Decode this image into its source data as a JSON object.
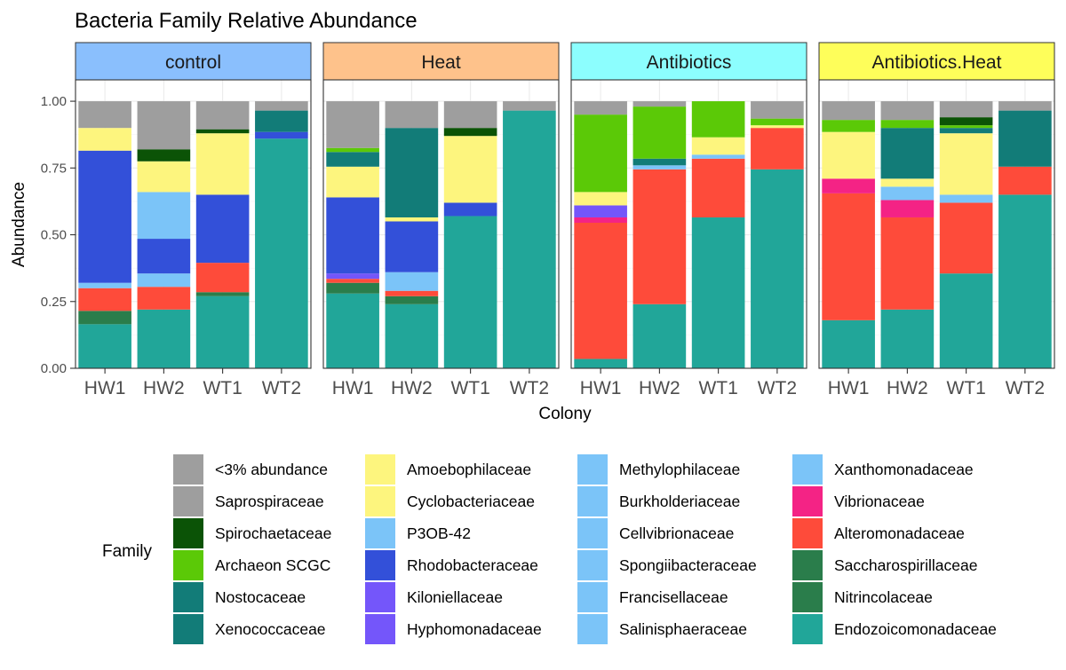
{
  "chart_data": {
    "type": "bar",
    "stacked": true,
    "title": "Bacteria Family Relative Abundance",
    "xlabel": "Colony",
    "ylabel": "Abundance",
    "ylim": [
      0,
      1.08
    ],
    "yticks": [
      "0.00",
      "0.25",
      "0.50",
      "0.75",
      "1.00"
    ],
    "ytick_values": [
      0,
      0.25,
      0.5,
      0.75,
      1.0
    ],
    "grid": true,
    "legend_position": "bottom",
    "legend_title": "Family",
    "categories": [
      "HW1",
      "HW2",
      "WT1",
      "WT2"
    ],
    "families": [
      {
        "name": "<3% abundance",
        "color": "#9E9E9E"
      },
      {
        "name": "Saprospiraceae",
        "color": "#9E9E9E"
      },
      {
        "name": "Spirochaetaceae",
        "color": "#0B5306"
      },
      {
        "name": "Archaeon SCGC",
        "color": "#5BC907"
      },
      {
        "name": "Nostocaceae",
        "color": "#127C78"
      },
      {
        "name": "Xenococcaceae",
        "color": "#127C78"
      },
      {
        "name": "Amoebophilaceae",
        "color": "#FDF57E"
      },
      {
        "name": "Cyclobacteriaceae",
        "color": "#FDF57E"
      },
      {
        "name": "P3OB-42",
        "color": "#7BC4F8"
      },
      {
        "name": "Rhodobacteraceae",
        "color": "#3350D9"
      },
      {
        "name": "Kiloniellaceae",
        "color": "#7456FA"
      },
      {
        "name": "Hyphomonadaceae",
        "color": "#7456FA"
      },
      {
        "name": "Methylophilaceae",
        "color": "#7BC4F8"
      },
      {
        "name": "Burkholderiaceae",
        "color": "#7BC4F8"
      },
      {
        "name": "Cellvibrionaceae",
        "color": "#7BC4F8"
      },
      {
        "name": "Spongiibacteraceae",
        "color": "#7BC4F8"
      },
      {
        "name": "Francisellaceae",
        "color": "#7BC4F8"
      },
      {
        "name": "Salinisphaeraceae",
        "color": "#7BC4F8"
      },
      {
        "name": "Xanthomonadaceae",
        "color": "#7BC4F8"
      },
      {
        "name": "Vibrionaceae",
        "color": "#F42385"
      },
      {
        "name": "Alteromonadaceae",
        "color": "#FE4B3A"
      },
      {
        "name": "Saccharospirillaceae",
        "color": "#2A7D4B"
      },
      {
        "name": "Nitrincolaceae",
        "color": "#2A7D4B"
      },
      {
        "name": "Endozoicomonadaceae",
        "color": "#21A699"
      }
    ],
    "panels": [
      {
        "label": "control",
        "strip_color": "#8ABFFD",
        "bars": [
          {
            "category": "HW1",
            "segments": [
              {
                "family": "Endozoicomonadaceae",
                "value": 0.165
              },
              {
                "family": "Saccharospirillaceae",
                "value": 0.05
              },
              {
                "family": "Alteromonadaceae",
                "value": 0.085
              },
              {
                "family": "Xanthomonadaceae",
                "value": 0.02
              },
              {
                "family": "Rhodobacteraceae",
                "value": 0.495
              },
              {
                "family": "Amoebophilaceae",
                "value": 0.085
              },
              {
                "family": "<3% abundance",
                "value": 0.1
              }
            ]
          },
          {
            "category": "HW2",
            "segments": [
              {
                "family": "Endozoicomonadaceae",
                "value": 0.22
              },
              {
                "family": "Alteromonadaceae",
                "value": 0.085
              },
              {
                "family": "P3OB-42",
                "value": 0.05
              },
              {
                "family": "Rhodobacteraceae",
                "value": 0.13
              },
              {
                "family": "P3OB-42",
                "value": 0.175
              },
              {
                "family": "Amoebophilaceae",
                "value": 0.115
              },
              {
                "family": "Spirochaetaceae",
                "value": 0.045
              },
              {
                "family": "<3% abundance",
                "value": 0.18
              }
            ]
          },
          {
            "category": "WT1",
            "segments": [
              {
                "family": "Endozoicomonadaceae",
                "value": 0.27
              },
              {
                "family": "Saccharospirillaceae",
                "value": 0.015
              },
              {
                "family": "Alteromonadaceae",
                "value": 0.11
              },
              {
                "family": "Rhodobacteraceae",
                "value": 0.255
              },
              {
                "family": "Amoebophilaceae",
                "value": 0.23
              },
              {
                "family": "Spirochaetaceae",
                "value": 0.015
              },
              {
                "family": "<3% abundance",
                "value": 0.105
              }
            ]
          },
          {
            "category": "WT2",
            "segments": [
              {
                "family": "Endozoicomonadaceae",
                "value": 0.86
              },
              {
                "family": "Rhodobacteraceae",
                "value": 0.025
              },
              {
                "family": "Nostocaceae",
                "value": 0.08
              },
              {
                "family": "<3% abundance",
                "value": 0.035
              }
            ]
          }
        ]
      },
      {
        "label": "Heat",
        "strip_color": "#FEC28B",
        "bars": [
          {
            "category": "HW1",
            "segments": [
              {
                "family": "Endozoicomonadaceae",
                "value": 0.28
              },
              {
                "family": "Saccharospirillaceae",
                "value": 0.04
              },
              {
                "family": "Alteromonadaceae",
                "value": 0.015
              },
              {
                "family": "Hyphomonadaceae",
                "value": 0.02
              },
              {
                "family": "Rhodobacteraceae",
                "value": 0.285
              },
              {
                "family": "Amoebophilaceae",
                "value": 0.115
              },
              {
                "family": "Nostocaceae",
                "value": 0.055
              },
              {
                "family": "Archaeon SCGC",
                "value": 0.015
              },
              {
                "family": "<3% abundance",
                "value": 0.175
              }
            ]
          },
          {
            "category": "HW2",
            "segments": [
              {
                "family": "Endozoicomonadaceae",
                "value": 0.24
              },
              {
                "family": "Saccharospirillaceae",
                "value": 0.03
              },
              {
                "family": "Alteromonadaceae",
                "value": 0.02
              },
              {
                "family": "P3OB-42",
                "value": 0.07
              },
              {
                "family": "Rhodobacteraceae",
                "value": 0.19
              },
              {
                "family": "Amoebophilaceae",
                "value": 0.015
              },
              {
                "family": "Nostocaceae",
                "value": 0.335
              },
              {
                "family": "<3% abundance",
                "value": 0.1
              }
            ]
          },
          {
            "category": "WT1",
            "segments": [
              {
                "family": "Endozoicomonadaceae",
                "value": 0.57
              },
              {
                "family": "Rhodobacteraceae",
                "value": 0.05
              },
              {
                "family": "Amoebophilaceae",
                "value": 0.25
              },
              {
                "family": "Spirochaetaceae",
                "value": 0.03
              },
              {
                "family": "<3% abundance",
                "value": 0.1
              }
            ]
          },
          {
            "category": "WT2",
            "segments": [
              {
                "family": "Endozoicomonadaceae",
                "value": 0.965
              },
              {
                "family": "<3% abundance",
                "value": 0.035
              }
            ]
          }
        ]
      },
      {
        "label": "Antibiotics",
        "strip_color": "#8CFEFE",
        "bars": [
          {
            "category": "HW1",
            "segments": [
              {
                "family": "Endozoicomonadaceae",
                "value": 0.035
              },
              {
                "family": "Alteromonadaceae",
                "value": 0.51
              },
              {
                "family": "Vibrionaceae",
                "value": 0.02
              },
              {
                "family": "Hyphomonadaceae",
                "value": 0.045
              },
              {
                "family": "Amoebophilaceae",
                "value": 0.05
              },
              {
                "family": "Archaeon SCGC",
                "value": 0.29
              },
              {
                "family": "<3% abundance",
                "value": 0.05
              }
            ]
          },
          {
            "category": "HW2",
            "segments": [
              {
                "family": "Endozoicomonadaceae",
                "value": 0.24
              },
              {
                "family": "Alteromonadaceae",
                "value": 0.505
              },
              {
                "family": "P3OB-42",
                "value": 0.015
              },
              {
                "family": "Nostocaceae",
                "value": 0.025
              },
              {
                "family": "Archaeon SCGC",
                "value": 0.195
              },
              {
                "family": "<3% abundance",
                "value": 0.02
              }
            ]
          },
          {
            "category": "WT1",
            "segments": [
              {
                "family": "Endozoicomonadaceae",
                "value": 0.565
              },
              {
                "family": "Alteromonadaceae",
                "value": 0.22
              },
              {
                "family": "P3OB-42",
                "value": 0.015
              },
              {
                "family": "Amoebophilaceae",
                "value": 0.065
              },
              {
                "family": "Archaeon SCGC",
                "value": 0.135
              }
            ]
          },
          {
            "category": "WT2",
            "segments": [
              {
                "family": "Endozoicomonadaceae",
                "value": 0.745
              },
              {
                "family": "Alteromonadaceae",
                "value": 0.155
              },
              {
                "family": "Amoebophilaceae",
                "value": 0.01
              },
              {
                "family": "Archaeon SCGC",
                "value": 0.025
              },
              {
                "family": "<3% abundance",
                "value": 0.065
              }
            ]
          }
        ]
      },
      {
        "label": "Antibiotics.Heat",
        "strip_color": "#FEFE5A",
        "bars": [
          {
            "category": "HW1",
            "segments": [
              {
                "family": "Endozoicomonadaceae",
                "value": 0.18
              },
              {
                "family": "Alteromonadaceae",
                "value": 0.475
              },
              {
                "family": "Vibrionaceae",
                "value": 0.055
              },
              {
                "family": "Amoebophilaceae",
                "value": 0.175
              },
              {
                "family": "Archaeon SCGC",
                "value": 0.045
              },
              {
                "family": "<3% abundance",
                "value": 0.07
              }
            ]
          },
          {
            "category": "HW2",
            "segments": [
              {
                "family": "Endozoicomonadaceae",
                "value": 0.22
              },
              {
                "family": "Alteromonadaceae",
                "value": 0.345
              },
              {
                "family": "Vibrionaceae",
                "value": 0.065
              },
              {
                "family": "P3OB-42",
                "value": 0.05
              },
              {
                "family": "Amoebophilaceae",
                "value": 0.03
              },
              {
                "family": "Nostocaceae",
                "value": 0.19
              },
              {
                "family": "Archaeon SCGC",
                "value": 0.03
              },
              {
                "family": "<3% abundance",
                "value": 0.07
              }
            ]
          },
          {
            "category": "WT1",
            "segments": [
              {
                "family": "Endozoicomonadaceae",
                "value": 0.355
              },
              {
                "family": "Alteromonadaceae",
                "value": 0.265
              },
              {
                "family": "P3OB-42",
                "value": 0.03
              },
              {
                "family": "Amoebophilaceae",
                "value": 0.23
              },
              {
                "family": "Nostocaceae",
                "value": 0.02
              },
              {
                "family": "Archaeon SCGC",
                "value": 0.01
              },
              {
                "family": "Spirochaetaceae",
                "value": 0.03
              },
              {
                "family": "<3% abundance",
                "value": 0.06
              }
            ]
          },
          {
            "category": "WT2",
            "segments": [
              {
                "family": "Endozoicomonadaceae",
                "value": 0.65
              },
              {
                "family": "Alteromonadaceae",
                "value": 0.105
              },
              {
                "family": "Nostocaceae",
                "value": 0.21
              },
              {
                "family": "<3% abundance",
                "value": 0.035
              }
            ]
          }
        ]
      }
    ]
  }
}
